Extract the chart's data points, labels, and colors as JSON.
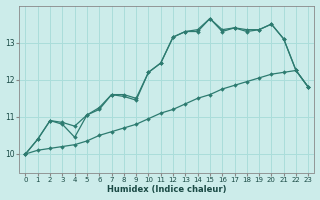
{
  "xlabel": "Humidex (Indice chaleur)",
  "bg_color": "#ccecea",
  "grid_color": "#aaddda",
  "line_color": "#2d7b70",
  "x": [
    0,
    1,
    2,
    3,
    4,
    5,
    6,
    7,
    8,
    9,
    10,
    11,
    12,
    13,
    14,
    15,
    16,
    17,
    18,
    19,
    20,
    21,
    22,
    23
  ],
  "line_zigzag": [
    10.0,
    10.4,
    10.9,
    10.8,
    10.45,
    11.05,
    11.2,
    11.6,
    11.55,
    11.45,
    12.2,
    12.45,
    13.15,
    13.3,
    13.3,
    13.65,
    13.3,
    13.4,
    13.3,
    13.35,
    13.5,
    13.1,
    12.25,
    11.8
  ],
  "line_smooth": [
    10.0,
    10.4,
    10.9,
    10.85,
    10.75,
    11.05,
    11.25,
    11.6,
    11.6,
    11.5,
    12.2,
    12.45,
    13.15,
    13.3,
    13.35,
    13.65,
    13.35,
    13.4,
    13.35,
    13.35,
    13.5,
    13.1,
    12.25,
    11.8
  ],
  "line_trend": [
    10.0,
    10.1,
    10.15,
    10.2,
    10.25,
    10.35,
    10.5,
    10.6,
    10.7,
    10.8,
    10.95,
    11.1,
    11.2,
    11.35,
    11.5,
    11.6,
    11.75,
    11.85,
    11.95,
    12.05,
    12.15,
    12.2,
    12.25,
    11.8
  ],
  "ylim": [
    9.5,
    14.0
  ],
  "yticks": [
    10,
    11,
    12,
    13
  ],
  "xlim": [
    -0.5,
    23.5
  ],
  "xticks": [
    0,
    1,
    2,
    3,
    4,
    5,
    6,
    7,
    8,
    9,
    10,
    11,
    12,
    13,
    14,
    15,
    16,
    17,
    18,
    19,
    20,
    21,
    22,
    23
  ]
}
